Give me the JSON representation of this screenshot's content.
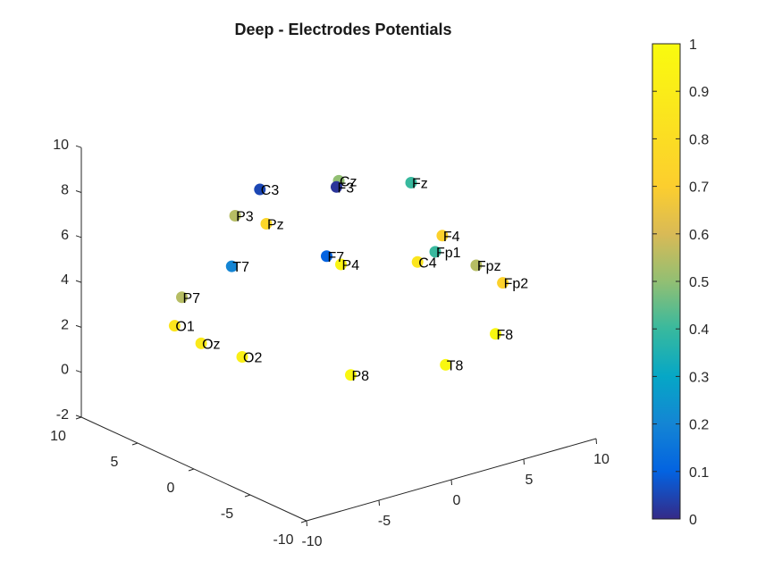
{
  "chart_data": {
    "type": "scatter",
    "title": "Deep - Electrodes Potentials",
    "axes": {
      "x": {
        "range": [
          -10,
          10
        ],
        "ticks": [
          -10,
          -5,
          0,
          5,
          10
        ]
      },
      "y": {
        "range": [
          -10,
          10
        ],
        "ticks": [
          -10,
          -5,
          0,
          5,
          10
        ]
      },
      "z": {
        "range": [
          -2,
          10
        ],
        "ticks": [
          -2,
          0,
          2,
          4,
          6,
          8,
          10
        ]
      }
    },
    "colorbar": {
      "colormap": "parula",
      "range": [
        0,
        1
      ],
      "ticks": [
        "0",
        "0.1",
        "0.2",
        "0.3",
        "0.4",
        "0.5",
        "0.6",
        "0.7",
        "0.8",
        "0.9",
        "1"
      ]
    },
    "points": [
      {
        "label": "Cz",
        "x": 0,
        "y": 0,
        "z": 9.0,
        "value": 0.5
      },
      {
        "label": "C3",
        "x": 0,
        "y": 7,
        "z": 7.0,
        "value": 0.05
      },
      {
        "label": "C4",
        "x": 0,
        "y": -7,
        "z": 7.0,
        "value": 0.85
      },
      {
        "label": "Fz",
        "x": 5,
        "y": 0,
        "z": 8.0,
        "value": 0.4
      },
      {
        "label": "F3",
        "x": 3.5,
        "y": 4.7,
        "z": 7.0,
        "value": 0.02
      },
      {
        "label": "F4",
        "x": 3.5,
        "y": -4.7,
        "z": 7.0,
        "value": 0.72
      },
      {
        "label": "Pz",
        "x": -5,
        "y": 0,
        "z": 8.0,
        "value": 0.75
      },
      {
        "label": "P3",
        "x": -3.5,
        "y": 4.7,
        "z": 7.0,
        "value": 0.55
      },
      {
        "label": "P4",
        "x": -3.5,
        "y": -4.7,
        "z": 7.0,
        "value": 0.95
      },
      {
        "label": "F7",
        "x": 5,
        "y": 7.5,
        "z": 3.0,
        "value": 0.1
      },
      {
        "label": "T7",
        "x": 0,
        "y": 9.5,
        "z": 3.0,
        "value": 0.2
      },
      {
        "label": "P7",
        "x": -5,
        "y": 7.5,
        "z": 3.0,
        "value": 0.55
      },
      {
        "label": "Fp1",
        "x": 9,
        "y": 3,
        "z": 3.5,
        "value": 0.4
      },
      {
        "label": "Fpz",
        "x": 9.5,
        "y": 0,
        "z": 3.5,
        "value": 0.55
      },
      {
        "label": "Fp2",
        "x": 9,
        "y": -3,
        "z": 3.5,
        "value": 0.72
      },
      {
        "label": "F8",
        "x": 5,
        "y": -7.5,
        "z": 3.0,
        "value": 0.97
      },
      {
        "label": "T8",
        "x": 0,
        "y": -9.5,
        "z": 3.0,
        "value": 0.97
      },
      {
        "label": "P8",
        "x": -5,
        "y": -7.5,
        "z": 3.0,
        "value": 0.97
      },
      {
        "label": "O1",
        "x": -9,
        "y": 3,
        "z": 3.5,
        "value": 0.85
      },
      {
        "label": "Oz",
        "x": -9.5,
        "y": 0,
        "z": 3.5,
        "value": 0.88
      },
      {
        "label": "O2",
        "x": -9,
        "y": -3,
        "z": 3.5,
        "value": 0.92
      }
    ]
  }
}
